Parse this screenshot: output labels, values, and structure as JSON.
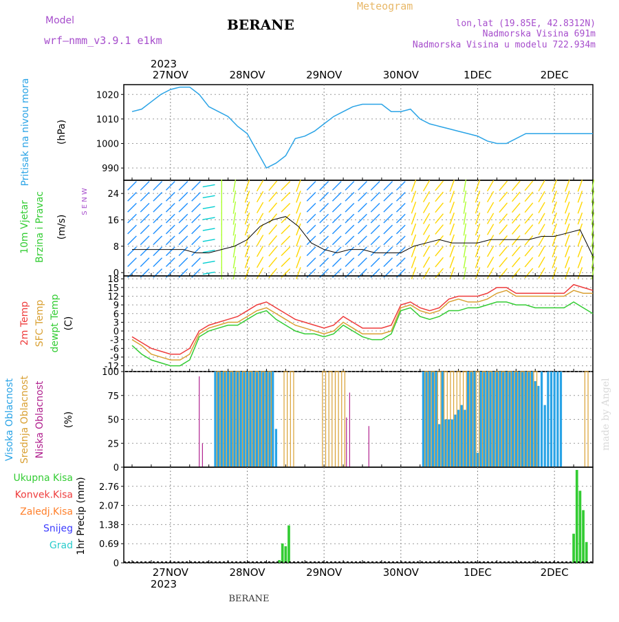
{
  "header": {
    "model_label": "Model",
    "model_name": "wrf–nmm_v3.9.1  e1km",
    "station": "BERANE",
    "product": "Meteogram",
    "lonlat": "lon,lat (19.85E, 42.8312N)",
    "altitude": "Nadmorska Visina 691m",
    "model_altitude": "Nadmorska Visina u modelu 722.934m",
    "watermark": "made by Angel",
    "footer": "BERANE"
  },
  "time_axis": {
    "year": "2023",
    "days": [
      "27NOV",
      "28NOV",
      "29NOV",
      "30NOV",
      "1DEC",
      "2DEC"
    ],
    "hours_range": [
      0,
      144
    ]
  },
  "colors": {
    "pressure": "#29a3e6",
    "temp2m": "#ee3b3b",
    "sfc_temp": "#d9a032",
    "dewpoint": "#33cc33",
    "cloud_high": "#29a3e6",
    "cloud_mid": "#d9a032",
    "cloud_low": "#b0208e",
    "precip_total": "#33cc33",
    "precip_conv": "#ee3b3b",
    "precip_frz": "#ff7f2a",
    "precip_snow": "#3b3bff",
    "precip_hail": "#29cccc",
    "header_purple": "#a64dcc",
    "header_orange": "#e8b868"
  },
  "chart_data": [
    {
      "type": "line",
      "panel": "pressure",
      "ylabel_main": "Pritisak na nivou mora",
      "unit": "(hPa)",
      "yticks": [
        "990",
        "1000",
        "1010",
        "1020"
      ],
      "ylim": [
        985,
        1024
      ],
      "grid": true,
      "series": [
        {
          "x": [
            0,
            3,
            6,
            9,
            12,
            15,
            18,
            21,
            24,
            27,
            30,
            33,
            36,
            39,
            42,
            45,
            48,
            51,
            54,
            57,
            60,
            63,
            66,
            69,
            72,
            75,
            78,
            81,
            84,
            87,
            90,
            93,
            96,
            99,
            102,
            105,
            108,
            111,
            114,
            117,
            120,
            123,
            126,
            129,
            132,
            135,
            138,
            141,
            144
          ],
          "y": [
            1013,
            1014,
            1017,
            1020,
            1022,
            1023,
            1023,
            1020,
            1015,
            1013,
            1011,
            1007,
            1004,
            997,
            990,
            992,
            995,
            1002,
            1003,
            1005,
            1008,
            1011,
            1013,
            1015,
            1016,
            1016,
            1016,
            1013,
            1013,
            1014,
            1010,
            1008,
            1007,
            1006,
            1005,
            1004,
            1003,
            1001,
            1000,
            1000,
            1002,
            1004,
            1004,
            1004,
            1004,
            1004,
            1004,
            1004,
            1004
          ]
        }
      ]
    },
    {
      "type": "scatter",
      "panel": "wind",
      "ylabel_main": "10m Vjetar",
      "ylabel_sub": "Brzina i Pravac",
      "unit": "(m/s)",
      "compass": "S E N W",
      "yticks": [
        "0",
        "8",
        "16",
        "24"
      ],
      "ylim": [
        -1,
        28
      ],
      "grid": true,
      "series": [
        {
          "x": [
            0,
            4,
            8,
            12,
            16,
            20,
            24,
            28,
            32,
            36,
            40,
            44,
            48,
            52,
            56,
            60,
            64,
            68,
            72,
            76,
            80,
            84,
            88,
            92,
            96,
            100,
            104,
            108,
            112,
            116,
            120,
            124,
            128,
            132,
            136,
            140,
            144
          ],
          "y": [
            7,
            7,
            7,
            7,
            7,
            6,
            6,
            7,
            8,
            10,
            14,
            16,
            17,
            14,
            9,
            7,
            6,
            7,
            7,
            6,
            6,
            6,
            8,
            9,
            10,
            9,
            9,
            9,
            10,
            10,
            10,
            10,
            11,
            11,
            12,
            13,
            5
          ]
        }
      ],
      "direction_deg": [
        45,
        45,
        45,
        45,
        45,
        45,
        80,
        180,
        190,
        200,
        210,
        220,
        225,
        200,
        45,
        45,
        45,
        45,
        45,
        45,
        45,
        45,
        200,
        210,
        220,
        200,
        190,
        200,
        210,
        220,
        220,
        220,
        210,
        200,
        200,
        200,
        190
      ]
    },
    {
      "type": "line",
      "panel": "temperature",
      "ylabel": [
        "2m Temp",
        "SFC Temp",
        "dewpt Temp"
      ],
      "unit": "(C)",
      "yticks": [
        "-12",
        "-9",
        "-6",
        "-3",
        "0",
        "3",
        "6",
        "9",
        "12",
        "15",
        "18"
      ],
      "ylim": [
        -14,
        19
      ],
      "grid": true,
      "series": [
        {
          "name": "2m Temp",
          "x": [
            0,
            3,
            6,
            9,
            12,
            15,
            18,
            21,
            24,
            27,
            30,
            33,
            36,
            39,
            42,
            45,
            48,
            51,
            54,
            57,
            60,
            63,
            66,
            69,
            72,
            75,
            78,
            81,
            84,
            87,
            90,
            93,
            96,
            99,
            102,
            105,
            108,
            111,
            114,
            117,
            120,
            123,
            126,
            129,
            132,
            135,
            138,
            141,
            144
          ],
          "y": [
            -2,
            -4,
            -6,
            -7,
            -8,
            -8,
            -6,
            0,
            2,
            3,
            4,
            5,
            7,
            9,
            10,
            8,
            6,
            4,
            3,
            2,
            1,
            2,
            5,
            3,
            1,
            1,
            1,
            2,
            9,
            10,
            8,
            7,
            8,
            11,
            12,
            12,
            12,
            13,
            15,
            15,
            13,
            13,
            13,
            13,
            13,
            13,
            16,
            15,
            14
          ]
        },
        {
          "name": "SFC Temp",
          "x": [
            0,
            3,
            6,
            9,
            12,
            15,
            18,
            21,
            24,
            27,
            30,
            33,
            36,
            39,
            42,
            45,
            48,
            51,
            54,
            57,
            60,
            63,
            66,
            69,
            72,
            75,
            78,
            81,
            84,
            87,
            90,
            93,
            96,
            99,
            102,
            105,
            108,
            111,
            114,
            117,
            120,
            123,
            126,
            129,
            132,
            135,
            138,
            141,
            144
          ],
          "y": [
            -3,
            -5,
            -8,
            -9,
            -10,
            -10,
            -8,
            -1,
            1,
            2,
            3,
            3,
            5,
            7,
            8,
            6,
            4,
            2,
            1,
            0,
            -1,
            0,
            3,
            1,
            -1,
            -1,
            -1,
            0,
            8,
            9,
            7,
            6,
            7,
            10,
            11,
            10,
            10,
            11,
            13,
            14,
            12,
            12,
            12,
            12,
            12,
            12,
            14,
            13,
            13
          ]
        },
        {
          "name": "dewpt Temp",
          "x": [
            0,
            3,
            6,
            9,
            12,
            15,
            18,
            21,
            24,
            27,
            30,
            33,
            36,
            39,
            42,
            45,
            48,
            51,
            54,
            57,
            60,
            63,
            66,
            69,
            72,
            75,
            78,
            81,
            84,
            87,
            90,
            93,
            96,
            99,
            102,
            105,
            108,
            111,
            114,
            117,
            120,
            123,
            126,
            129,
            132,
            135,
            138,
            141,
            144
          ],
          "y": [
            -5,
            -8,
            -10,
            -11,
            -12,
            -12,
            -10,
            -2,
            0,
            1,
            2,
            2,
            4,
            6,
            7,
            4,
            2,
            0,
            -1,
            -1,
            -2,
            -1,
            2,
            0,
            -2,
            -3,
            -3,
            -1,
            7,
            8,
            5,
            4,
            5,
            7,
            7,
            8,
            8,
            9,
            10,
            10,
            9,
            9,
            8,
            8,
            8,
            8,
            10,
            8,
            6
          ]
        }
      ]
    },
    {
      "type": "bar",
      "panel": "clouds",
      "ylabel": [
        "Visoka Oblacnost",
        "Srednja Oblacnost",
        "Niska Oblacnost"
      ],
      "unit": "(%)",
      "yticks": [
        "0",
        "25",
        "50",
        "75",
        "100"
      ],
      "ylim": [
        0,
        100
      ],
      "grid": true,
      "series": [
        {
          "name": "Visoka Oblacnost",
          "x": [
            26,
            27,
            28,
            29,
            30,
            31,
            32,
            33,
            34,
            35,
            36,
            37,
            38,
            39,
            40,
            41,
            42,
            43,
            44,
            45,
            46,
            91,
            92,
            93,
            94,
            95,
            96,
            97,
            98,
            99,
            100,
            101,
            102,
            103,
            104,
            105,
            106,
            107,
            108,
            109,
            110,
            111,
            112,
            113,
            114,
            115,
            116,
            117,
            118,
            119,
            120,
            121,
            122,
            123,
            124,
            125,
            126,
            127,
            128,
            129,
            130,
            131,
            132,
            133,
            134
          ],
          "y": [
            100,
            100,
            100,
            100,
            100,
            100,
            100,
            100,
            100,
            100,
            100,
            100,
            100,
            100,
            100,
            100,
            100,
            100,
            100,
            40,
            0,
            100,
            100,
            100,
            100,
            100,
            45,
            100,
            50,
            50,
            50,
            55,
            60,
            65,
            60,
            100,
            100,
            100,
            15,
            100,
            100,
            100,
            100,
            100,
            100,
            100,
            100,
            100,
            100,
            100,
            100,
            100,
            100,
            100,
            100,
            100,
            90,
            85,
            100,
            65,
            100,
            100,
            100,
            100,
            100
          ]
        },
        {
          "name": "Srednja Oblacnost",
          "x": [
            27,
            29,
            31,
            33,
            35,
            37,
            39,
            41,
            43,
            48,
            50,
            60,
            62,
            64,
            66,
            92,
            94,
            96,
            98,
            100,
            102,
            104,
            106,
            108,
            110,
            112,
            114,
            116,
            118,
            120,
            122,
            124,
            126,
            142
          ],
          "y": [
            100,
            100,
            100,
            100,
            100,
            100,
            100,
            100,
            100,
            100,
            100,
            100,
            100,
            100,
            100,
            100,
            100,
            100,
            100,
            100,
            100,
            100,
            100,
            100,
            100,
            100,
            100,
            100,
            100,
            100,
            100,
            100,
            100,
            100
          ]
        },
        {
          "name": "Niska Oblacnost",
          "x": [
            21,
            22,
            23,
            67,
            68,
            73,
            74,
            134,
            143
          ],
          "y": [
            95,
            25,
            0,
            52,
            78,
            0,
            43,
            0,
            0
          ]
        }
      ]
    },
    {
      "type": "bar",
      "panel": "precipitation",
      "ylabel": [
        "Ukupna Kisa",
        "Konvek.Kisa",
        "Zaledj.Kisa",
        "Snijeg",
        "Grad"
      ],
      "unit": "1hr Precip (mm)",
      "yticks": [
        "0",
        "0.69",
        "1.38",
        "2.07",
        "2.76"
      ],
      "ylim": [
        0,
        3.45
      ],
      "grid": true,
      "series": [
        {
          "name": "Ukupna Kisa",
          "x": [
            46,
            47,
            48,
            49,
            138,
            139,
            140,
            141,
            142
          ],
          "y": [
            0.1,
            0.7,
            0.6,
            1.35,
            1.05,
            3.35,
            2.6,
            1.9,
            0.75
          ]
        }
      ]
    }
  ]
}
